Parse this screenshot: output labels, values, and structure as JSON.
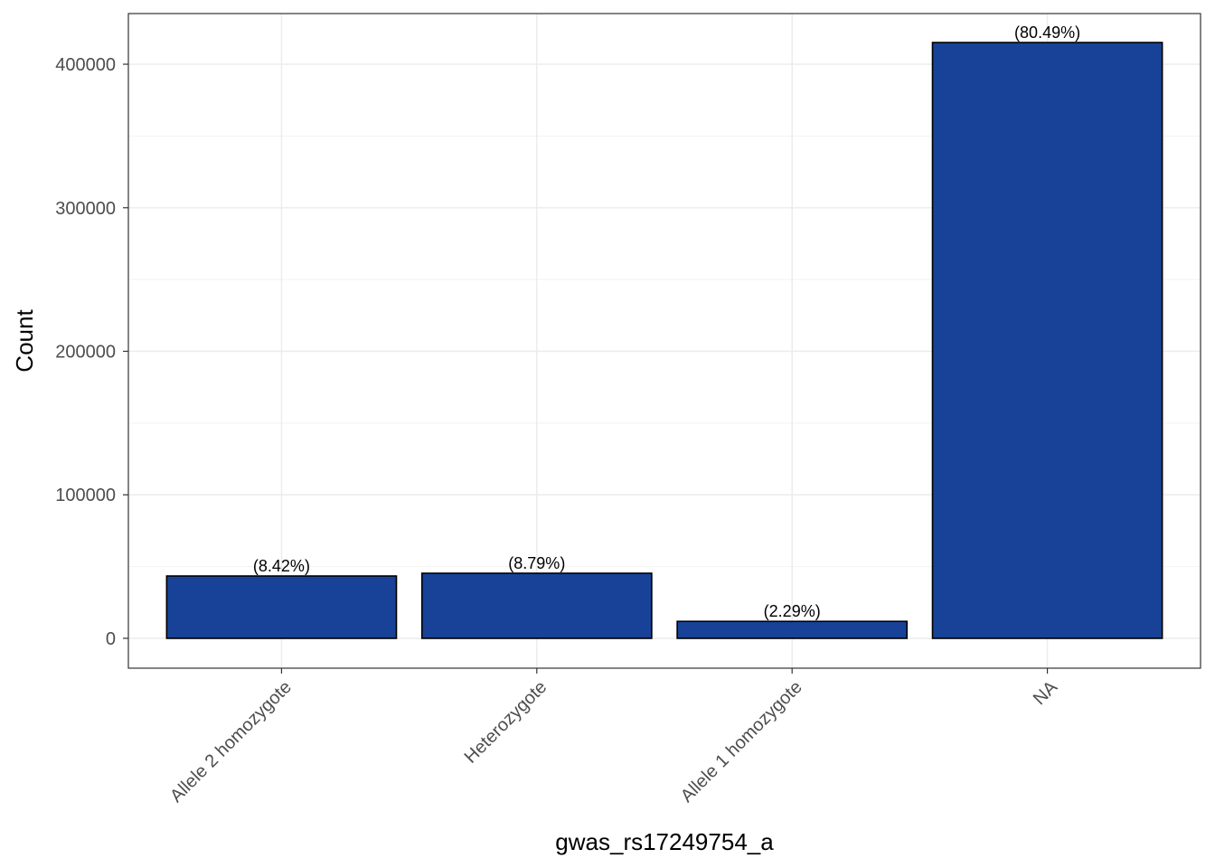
{
  "chart_data": {
    "type": "bar",
    "title": "",
    "xlabel": "gwas_rs17249754_a",
    "ylabel": "Count",
    "categories": [
      "Allele 2 homozygote",
      "Heterozygote",
      "Allele 1 homozygote",
      "NA"
    ],
    "values": [
      43430,
      45340,
      11810,
      415120
    ],
    "labels": [
      "(8.42%)",
      "(8.79%)",
      "(2.29%)",
      "(80.49%)"
    ],
    "ylim": [
      -20800,
      435300
    ],
    "yticks": [
      0,
      100000,
      200000,
      300000,
      400000
    ],
    "ytick_labels": [
      "0",
      "100000",
      "200000",
      "300000",
      "400000"
    ],
    "grid": true,
    "bar_color": "#174297",
    "bar_outline": "#000000"
  }
}
